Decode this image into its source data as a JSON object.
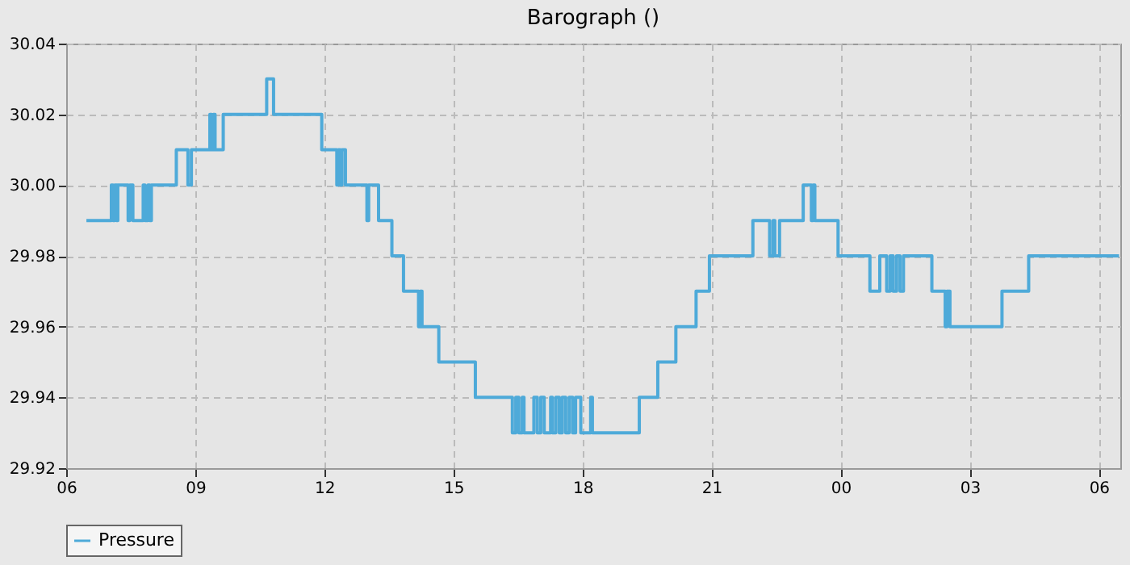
{
  "chart_data": {
    "type": "step",
    "title": "Barograph ()",
    "xlim": [
      6,
      30.5
    ],
    "ylim": [
      29.92,
      30.04
    ],
    "xticks": [
      {
        "value": 6,
        "label": "06"
      },
      {
        "value": 9,
        "label": "09"
      },
      {
        "value": 12,
        "label": "12"
      },
      {
        "value": 15,
        "label": "15"
      },
      {
        "value": 18,
        "label": "18"
      },
      {
        "value": 21,
        "label": "21"
      },
      {
        "value": 24,
        "label": "00"
      },
      {
        "value": 27,
        "label": "03"
      },
      {
        "value": 30,
        "label": "06"
      }
    ],
    "yticks": [
      {
        "value": 29.92,
        "label": "29.92"
      },
      {
        "value": 29.94,
        "label": "29.94"
      },
      {
        "value": 29.96,
        "label": "29.96"
      },
      {
        "value": 29.98,
        "label": "29.98"
      },
      {
        "value": 30.0,
        "label": "30.00"
      },
      {
        "value": 30.02,
        "label": "30.02"
      },
      {
        "value": 30.04,
        "label": "30.04"
      }
    ],
    "grid": true,
    "legend": "bottom",
    "marker": "none",
    "line_style": "solid",
    "series": [
      {
        "name": "Pressure",
        "color": "#4eaad9",
        "x": [
          6.47,
          7.05,
          7.09,
          7.13,
          7.17,
          7.2,
          7.44,
          7.48,
          7.55,
          7.79,
          7.83,
          7.9,
          7.94,
          7.98,
          8.56,
          8.83,
          8.91,
          9.34,
          9.38,
          9.42,
          9.46,
          9.65,
          10.66,
          10.82,
          11.94,
          12.29,
          12.33,
          12.37,
          12.41,
          12.49,
          12.99,
          13.03,
          13.26,
          13.57,
          13.84,
          14.19,
          14.23,
          14.27,
          14.66,
          15.51,
          16.37,
          16.45,
          16.52,
          16.6,
          16.64,
          16.87,
          16.95,
          17.03,
          17.11,
          17.26,
          17.3,
          17.38,
          17.46,
          17.53,
          17.61,
          17.69,
          17.77,
          17.84,
          17.96,
          18.19,
          18.23,
          19.32,
          19.75,
          20.17,
          20.64,
          20.95,
          21.96,
          22.35,
          22.43,
          22.47,
          22.58,
          23.13,
          23.32,
          23.36,
          23.4,
          23.94,
          24.68,
          24.91,
          25.07,
          25.15,
          25.22,
          25.3,
          25.38,
          25.46,
          26.12,
          26.43,
          26.47,
          26.54,
          27.75,
          28.37,
          30.47
        ],
        "values": [
          29.99,
          30.0,
          29.99,
          30.0,
          29.99,
          30.0,
          29.99,
          30.0,
          29.99,
          30.0,
          29.99,
          30.0,
          29.99,
          30.0,
          30.01,
          30.0,
          30.01,
          30.02,
          30.01,
          30.02,
          30.01,
          30.02,
          30.03,
          30.02,
          30.01,
          30.0,
          30.01,
          30.0,
          30.01,
          30.0,
          29.99,
          30.0,
          29.99,
          29.98,
          29.97,
          29.96,
          29.97,
          29.96,
          29.95,
          29.94,
          29.93,
          29.94,
          29.93,
          29.94,
          29.93,
          29.94,
          29.93,
          29.94,
          29.93,
          29.94,
          29.93,
          29.94,
          29.93,
          29.94,
          29.93,
          29.94,
          29.93,
          29.94,
          29.93,
          29.94,
          29.93,
          29.94,
          29.95,
          29.96,
          29.97,
          29.98,
          29.99,
          29.98,
          29.99,
          29.98,
          29.99,
          30.0,
          29.99,
          30.0,
          29.99,
          29.98,
          29.97,
          29.98,
          29.97,
          29.98,
          29.97,
          29.98,
          29.97,
          29.98,
          29.97,
          29.96,
          29.97,
          29.96,
          29.97,
          29.98,
          29.98
        ]
      }
    ]
  }
}
